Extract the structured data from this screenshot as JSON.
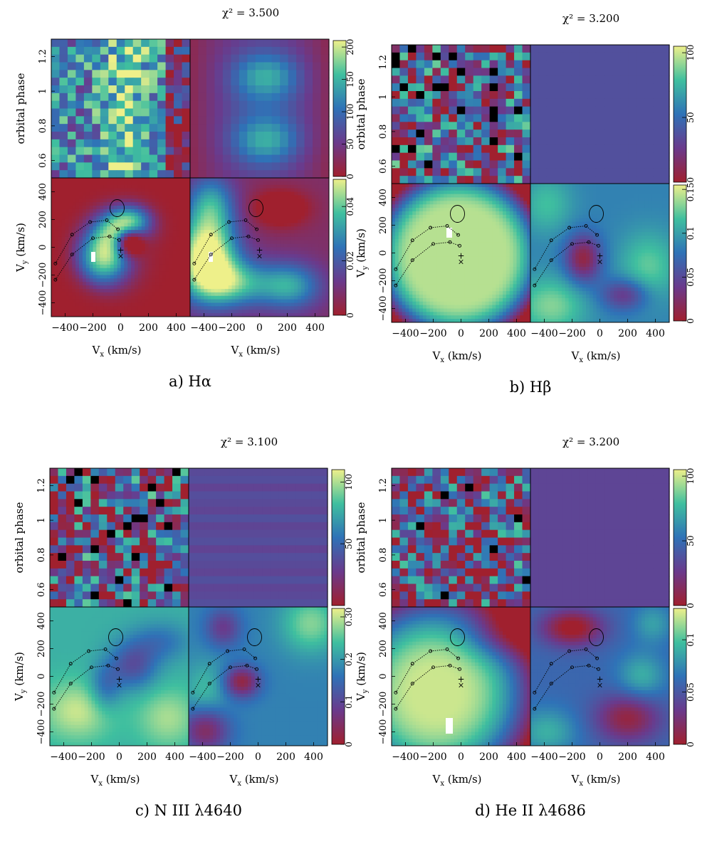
{
  "chart_data": [
    {
      "type": "heatmap",
      "caption": "a) Hα",
      "chi2": "3.500",
      "chi2_label": "χ² = 3.500",
      "trailed_spectra": {
        "ylabel": "orbital phase",
        "yticks": [
          "0.6",
          "0.8",
          "1",
          "1.2"
        ],
        "colorbar_ticks": [
          "0",
          "50",
          "100",
          "150",
          "200"
        ],
        "colorbar_range": [
          0,
          210
        ]
      },
      "tomograms": {
        "xlabel": "Vx (km/s)",
        "ylabel": "Vy (km/s)",
        "xticks": [
          "−400",
          "−200",
          "0",
          "200",
          "400"
        ],
        "yticks": [
          "−400",
          "−200",
          "0",
          "200",
          "400"
        ],
        "colorbar_ticks": [
          "0",
          "0.02",
          "0.04"
        ],
        "colorbar_range": [
          0,
          0.05
        ]
      }
    },
    {
      "type": "heatmap",
      "caption": "b) Hβ",
      "chi2": "3.200",
      "chi2_label": "χ² = 3.200",
      "trailed_spectra": {
        "ylabel": "orbital phase",
        "yticks": [
          "0.6",
          "0.8",
          "1",
          "1.2"
        ],
        "colorbar_ticks": [
          "50",
          "100"
        ],
        "colorbar_range": [
          0,
          105
        ]
      },
      "tomograms": {
        "xlabel": "Vx (km/s)",
        "ylabel": "Vy (km/s)",
        "xticks": [
          "−400",
          "−200",
          "0",
          "200",
          "400"
        ],
        "yticks": [
          "−400",
          "−200",
          "0",
          "200",
          "400"
        ],
        "colorbar_ticks": [
          "0",
          "0.05",
          "0.1",
          "0.150"
        ],
        "colorbar_range": [
          0,
          0.155
        ]
      }
    },
    {
      "type": "heatmap",
      "caption": "c) N III λ4640",
      "chi2": "3.100",
      "chi2_label": "χ² = 3.100",
      "trailed_spectra": {
        "ylabel": "orbital phase",
        "yticks": [
          "0.6",
          "0.8",
          "1",
          "1.2"
        ],
        "colorbar_ticks": [
          "50",
          "100"
        ],
        "colorbar_range": [
          0,
          110
        ]
      },
      "tomograms": {
        "xlabel": "Vx (km/s)",
        "ylabel": "Vy (km/s)",
        "xticks": [
          "−400",
          "−200",
          "0",
          "200",
          "400"
        ],
        "yticks": [
          "−400",
          "−200",
          "0",
          "200",
          "400"
        ],
        "colorbar_ticks": [
          "0",
          "0.1",
          "0.2",
          "0.30"
        ],
        "colorbar_range": [
          0,
          0.32
        ]
      }
    },
    {
      "type": "heatmap",
      "caption": "d) He II λ4686",
      "chi2": "3.200",
      "chi2_label": "χ² = 3.200",
      "trailed_spectra": {
        "ylabel": "orbital phase",
        "yticks": [
          "0.6",
          "0.8",
          "1",
          "1.2"
        ],
        "colorbar_ticks": [
          "0",
          "50",
          "100"
        ],
        "colorbar_range": [
          0,
          105
        ]
      },
      "tomograms": {
        "xlabel": "Vx (km/s)",
        "ylabel": "Vy (km/s)",
        "xticks": [
          "−400",
          "−200",
          "0",
          "200",
          "400"
        ],
        "yticks": [
          "−400",
          "−200",
          "0",
          "200",
          "400"
        ],
        "colorbar_ticks": [
          "0",
          "0.05",
          "0.1"
        ],
        "colorbar_range": [
          0,
          0.13
        ]
      }
    }
  ]
}
